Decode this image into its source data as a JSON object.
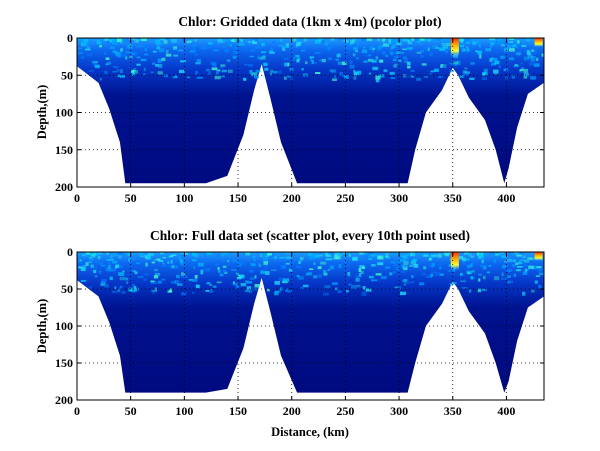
{
  "chart_data": [
    {
      "type": "heatmap",
      "title": "Chlor: Gridded data (1km x 4m) (pcolor plot)",
      "xlabel": "",
      "ylabel": "Depth,(m)",
      "xlim": [
        0,
        435
      ],
      "ylim": [
        200,
        0
      ],
      "y_reversed": true,
      "xticks": [
        0,
        50,
        100,
        150,
        200,
        250,
        300,
        350,
        400
      ],
      "yticks": [
        0,
        50,
        100,
        150,
        200
      ],
      "grid": true,
      "bottom_depth_profile": {
        "x": [
          0,
          20,
          30,
          40,
          45,
          60,
          80,
          100,
          120,
          140,
          155,
          165,
          172,
          180,
          190,
          205,
          215,
          230,
          260,
          290,
          308,
          315,
          325,
          340,
          350,
          355,
          365,
          380,
          390,
          398,
          402,
          410,
          420,
          435
        ],
        "depth": [
          38,
          60,
          95,
          140,
          195,
          195,
          195,
          195,
          195,
          185,
          130,
          70,
          35,
          80,
          140,
          195,
          195,
          195,
          195,
          195,
          195,
          150,
          100,
          70,
          40,
          50,
          80,
          110,
          150,
          195,
          175,
          120,
          75,
          60
        ]
      },
      "high_chlorophyll_features": [
        {
          "x": 352,
          "depth_top": 0,
          "depth_bottom": 25
        },
        {
          "x": 430,
          "depth_top": 0,
          "depth_bottom": 12
        }
      ],
      "colormap": "jet"
    },
    {
      "type": "scatter",
      "title": "Chlor: Full data set (scatter plot, every 10th point used)",
      "xlabel": "Distance, (km)",
      "ylabel": "Depth,(m)",
      "xlim": [
        0,
        435
      ],
      "ylim": [
        200,
        0
      ],
      "y_reversed": true,
      "xticks": [
        0,
        50,
        100,
        150,
        200,
        250,
        300,
        350,
        400
      ],
      "yticks": [
        0,
        50,
        100,
        150,
        200
      ],
      "grid": true,
      "bottom_depth_profile": {
        "x": [
          0,
          20,
          30,
          40,
          45,
          60,
          80,
          100,
          120,
          140,
          155,
          165,
          172,
          180,
          190,
          205,
          215,
          230,
          260,
          290,
          308,
          315,
          325,
          340,
          350,
          355,
          365,
          380,
          390,
          398,
          402,
          410,
          420,
          435
        ],
        "depth": [
          38,
          60,
          95,
          140,
          190,
          190,
          190,
          190,
          190,
          185,
          130,
          70,
          35,
          80,
          140,
          190,
          190,
          190,
          190,
          190,
          190,
          150,
          100,
          70,
          40,
          50,
          80,
          110,
          150,
          190,
          175,
          120,
          75,
          60
        ]
      },
      "high_chlorophyll_features": [
        {
          "x": 352,
          "depth_top": 0,
          "depth_bottom": 25
        },
        {
          "x": 430,
          "depth_top": 0,
          "depth_bottom": 12
        }
      ],
      "colormap": "jet"
    }
  ]
}
